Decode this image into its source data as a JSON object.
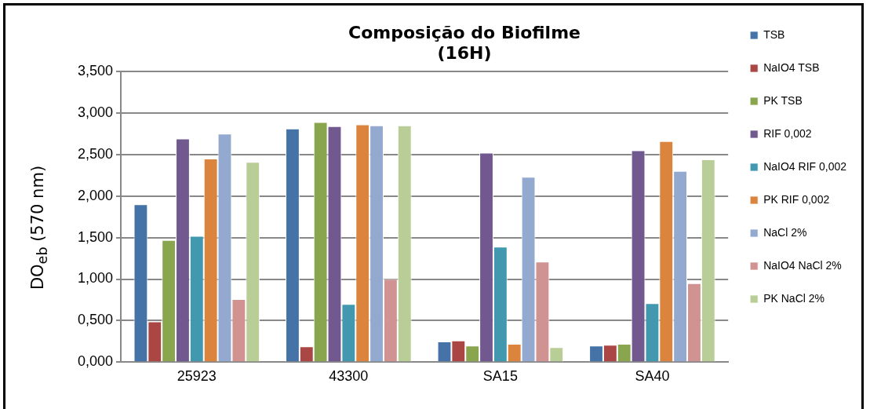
{
  "chart_data": {
    "type": "bar",
    "title": "Composição do Biofilme\n(16H)",
    "ylabel": "DO$_{eb}$ (570 nm)",
    "categories": [
      "25923",
      "43300",
      "SA15",
      "SA40"
    ],
    "series": [
      {
        "name": "TSB",
        "color": "#4572a7",
        "values": [
          1.9,
          2.81,
          0.25,
          0.2
        ]
      },
      {
        "name": "NaIO4 TSB",
        "color": "#aa4643",
        "values": [
          0.49,
          0.19,
          0.26,
          0.21
        ]
      },
      {
        "name": "PK TSB",
        "color": "#89a54e",
        "values": [
          1.47,
          2.89,
          0.2,
          0.22
        ]
      },
      {
        "name": "RIF 0,002",
        "color": "#71588f",
        "values": [
          2.69,
          2.84,
          2.52,
          2.55
        ]
      },
      {
        "name": "NaIO4 RIF 0,002",
        "color": "#4198af",
        "values": [
          1.52,
          0.7,
          1.39,
          0.71
        ]
      },
      {
        "name": "PK RIF 0,002",
        "color": "#db843d",
        "values": [
          2.45,
          2.86,
          0.22,
          2.66
        ]
      },
      {
        "name": "NaCl 2%",
        "color": "#93a9cf",
        "values": [
          2.75,
          2.85,
          2.23,
          2.3
        ]
      },
      {
        "name": "NaIO4 NaCl 2%",
        "color": "#d19392",
        "values": [
          0.76,
          1.0,
          1.21,
          0.95
        ]
      },
      {
        "name": "PK NaCl 2%",
        "color": "#b9cd96",
        "values": [
          2.41,
          2.85,
          0.18,
          2.44
        ]
      }
    ],
    "ylim": [
      0,
      3.5
    ],
    "yticks": [
      {
        "value": 0,
        "label": "0,000"
      },
      {
        "value": 0.5,
        "label": "0,500"
      },
      {
        "value": 1,
        "label": "1,000"
      },
      {
        "value": 1.5,
        "label": "1,500"
      },
      {
        "value": 2,
        "label": "2,000"
      },
      {
        "value": 2.5,
        "label": "2,500"
      },
      {
        "value": 3,
        "label": "3,000"
      },
      {
        "value": 3.5,
        "label": "3,500"
      }
    ],
    "grid": "y",
    "legend": "right"
  }
}
